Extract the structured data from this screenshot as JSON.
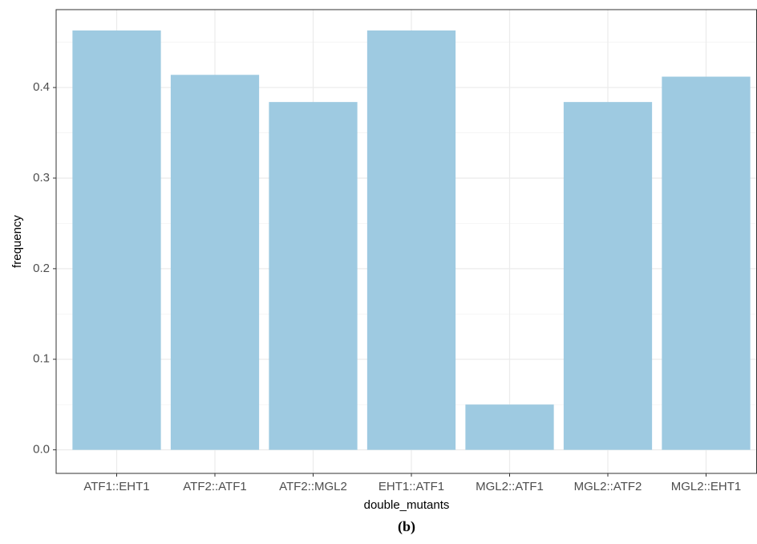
{
  "chart_data": {
    "type": "bar",
    "categories": [
      "ATF1::EHT1",
      "ATF2::ATF1",
      "ATF2::MGL2",
      "EHT1::ATF1",
      "MGL2::ATF1",
      "MGL2::ATF2",
      "MGL2::EHT1"
    ],
    "values": [
      0.463,
      0.414,
      0.384,
      0.463,
      0.05,
      0.384,
      0.412
    ],
    "color": "#9ecae1",
    "xlabel": "double_mutants",
    "ylabel": "frequency",
    "ylim": [
      -0.026,
      0.486
    ],
    "yticks": [
      0.0,
      0.1,
      0.2,
      0.3,
      0.4
    ],
    "grid": true,
    "caption": "(b)"
  }
}
